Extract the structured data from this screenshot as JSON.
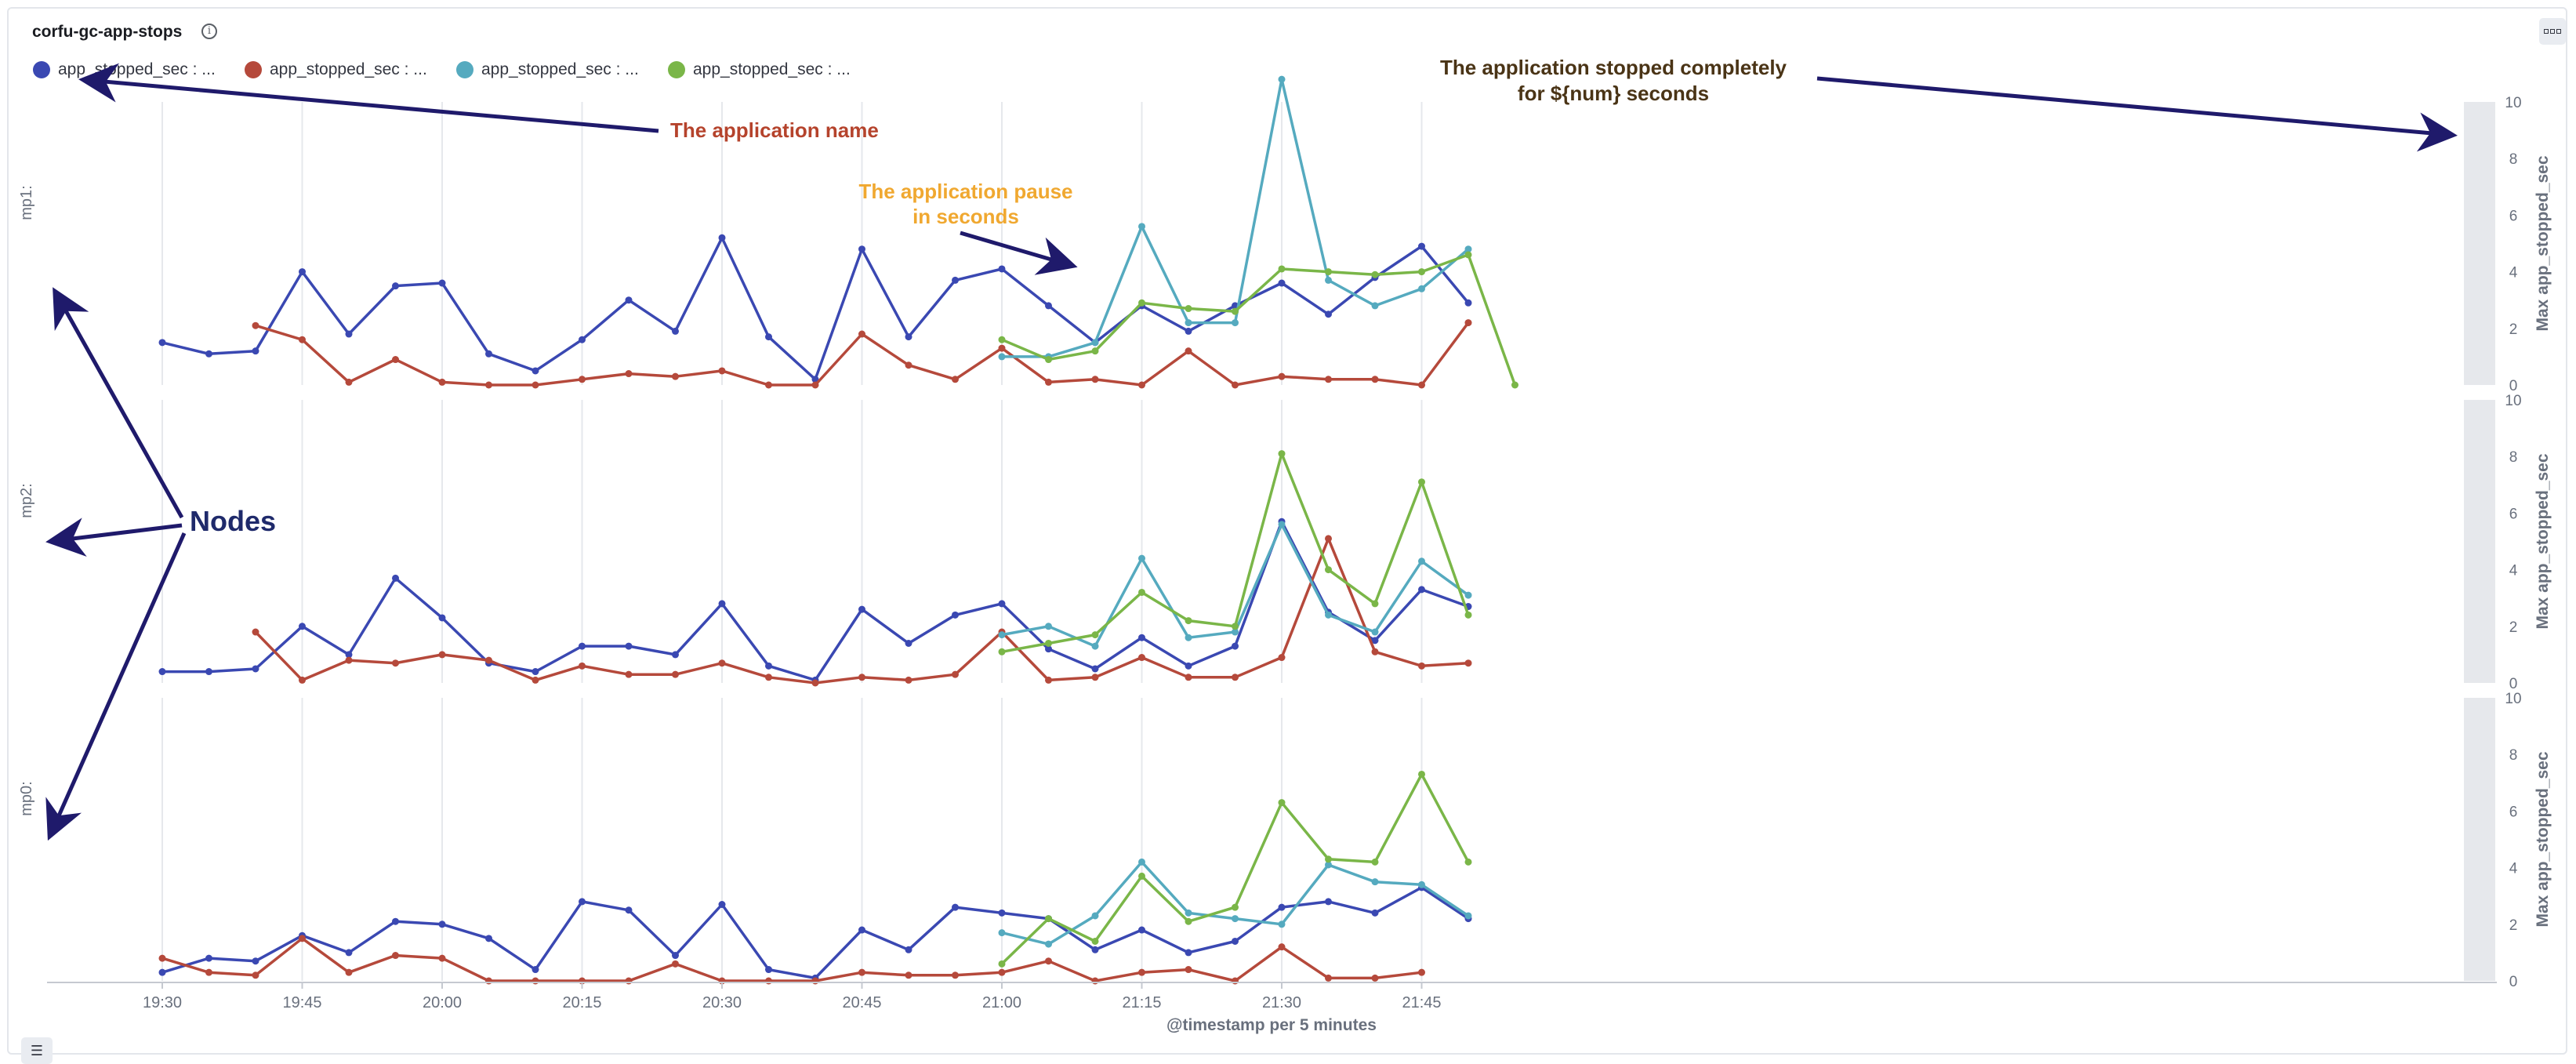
{
  "panel": {
    "title": "corfu-gc-app-stops",
    "info_icon": "info-icon",
    "menu_icon": "panel-options-icon",
    "list_icon": "legend-toggle-icon"
  },
  "legend": [
    {
      "label": "app_stopped_sec : ...",
      "color": "#3a48b2"
    },
    {
      "label": "app_stopped_sec : ...",
      "color": "#b5493b"
    },
    {
      "label": "app_stopped_sec : ...",
      "color": "#55aabf"
    },
    {
      "label": "app_stopped_sec : ...",
      "color": "#7ab648"
    }
  ],
  "annotations": {
    "app_name": "The application name",
    "pause_line1": "The application pause",
    "pause_line2": "in seconds",
    "stopped_line1": "The application stopped completely",
    "stopped_line2": "for ${num} seconds",
    "nodes": "Nodes"
  },
  "colors": {
    "app_name": "#b5432c",
    "pause": "#f0a830",
    "stopped": "#4a3416",
    "nodes": "#1f2a6b",
    "arrow": "#1f1a6b"
  },
  "chart_data": [
    {
      "type": "line",
      "panel": "mp1:",
      "x": [
        "19:30",
        "19:35",
        "19:40",
        "19:45",
        "19:50",
        "19:55",
        "20:00",
        "20:05",
        "20:10",
        "20:15",
        "20:20",
        "20:25",
        "20:30",
        "20:35",
        "20:40",
        "20:45",
        "20:50",
        "20:55",
        "21:00",
        "21:05",
        "21:10",
        "21:15",
        "21:20",
        "21:25",
        "21:30",
        "21:35",
        "21:40",
        "21:45",
        "21:50",
        "21:55"
      ],
      "xlabel": "@timestamp per 5 minutes",
      "ylabel": "Max app_stopped_sec",
      "ylim": [
        0,
        10
      ],
      "yticks": [
        0,
        2,
        4,
        6,
        8,
        10
      ],
      "series": [
        {
          "values": [
            1.5,
            1.1,
            1.2,
            4.0,
            1.8,
            3.5,
            3.6,
            1.1,
            0.5,
            1.6,
            3.0,
            1.9,
            5.2,
            1.7,
            0.2,
            4.8,
            1.7,
            3.7,
            4.1,
            2.8,
            1.5,
            2.8,
            1.9,
            2.8,
            3.6,
            2.5,
            3.8,
            4.9,
            2.9,
            null
          ]
        },
        {
          "values": [
            null,
            null,
            2.1,
            1.6,
            0.1,
            0.9,
            0.1,
            0.0,
            0.0,
            0.2,
            0.4,
            0.3,
            0.5,
            0.0,
            0.0,
            1.8,
            0.7,
            0.2,
            1.3,
            0.1,
            0.2,
            0.0,
            1.2,
            0.0,
            0.3,
            0.2,
            0.2,
            0.0,
            2.2,
            null
          ]
        },
        {
          "values": [
            null,
            null,
            null,
            null,
            null,
            null,
            null,
            null,
            null,
            null,
            null,
            null,
            null,
            null,
            null,
            null,
            null,
            null,
            1.0,
            1.0,
            1.5,
            5.6,
            2.2,
            2.2,
            10.8,
            3.7,
            2.8,
            3.4,
            4.8,
            null
          ]
        },
        {
          "values": [
            null,
            null,
            null,
            null,
            null,
            null,
            null,
            null,
            null,
            null,
            null,
            null,
            null,
            null,
            null,
            null,
            null,
            null,
            1.6,
            0.9,
            1.2,
            2.9,
            2.7,
            2.6,
            4.1,
            4.0,
            3.9,
            4.0,
            4.6,
            0.0
          ]
        }
      ]
    },
    {
      "type": "line",
      "panel": "mp2:",
      "x": [
        "19:30",
        "19:35",
        "19:40",
        "19:45",
        "19:50",
        "19:55",
        "20:00",
        "20:05",
        "20:10",
        "20:15",
        "20:20",
        "20:25",
        "20:30",
        "20:35",
        "20:40",
        "20:45",
        "20:50",
        "20:55",
        "21:00",
        "21:05",
        "21:10",
        "21:15",
        "21:20",
        "21:25",
        "21:30",
        "21:35",
        "21:40",
        "21:45",
        "21:50",
        "21:55"
      ],
      "xlabel": "@timestamp per 5 minutes",
      "ylabel": "Max app_stopped_sec",
      "ylim": [
        0,
        10
      ],
      "yticks": [
        0,
        2,
        4,
        6,
        8,
        10
      ],
      "series": [
        {
          "values": [
            0.4,
            0.4,
            0.5,
            2.0,
            1.0,
            3.7,
            2.3,
            0.7,
            0.4,
            1.3,
            1.3,
            1.0,
            2.8,
            0.6,
            0.1,
            2.6,
            1.4,
            2.4,
            2.8,
            1.2,
            0.5,
            1.6,
            0.6,
            1.3,
            5.7,
            2.5,
            1.5,
            3.3,
            2.7,
            null
          ]
        },
        {
          "values": [
            null,
            null,
            1.8,
            0.1,
            0.8,
            0.7,
            1.0,
            0.8,
            0.1,
            0.6,
            0.3,
            0.3,
            0.7,
            0.2,
            0.0,
            0.2,
            0.1,
            0.3,
            1.8,
            0.1,
            0.2,
            0.9,
            0.2,
            0.2,
            0.9,
            5.1,
            1.1,
            0.6,
            0.7,
            null
          ]
        },
        {
          "values": [
            null,
            null,
            null,
            null,
            null,
            null,
            null,
            null,
            null,
            null,
            null,
            null,
            null,
            null,
            null,
            null,
            null,
            null,
            1.7,
            2.0,
            1.3,
            4.4,
            1.6,
            1.8,
            5.6,
            2.4,
            1.8,
            4.3,
            3.1,
            null
          ]
        },
        {
          "values": [
            null,
            null,
            null,
            null,
            null,
            null,
            null,
            null,
            null,
            null,
            null,
            null,
            null,
            null,
            null,
            null,
            null,
            null,
            1.1,
            1.4,
            1.7,
            3.2,
            2.2,
            2.0,
            8.1,
            4.0,
            2.8,
            7.1,
            2.4,
            null
          ]
        }
      ]
    },
    {
      "type": "line",
      "panel": "mp0:",
      "x": [
        "19:30",
        "19:35",
        "19:40",
        "19:45",
        "19:50",
        "19:55",
        "20:00",
        "20:05",
        "20:10",
        "20:15",
        "20:20",
        "20:25",
        "20:30",
        "20:35",
        "20:40",
        "20:45",
        "20:50",
        "20:55",
        "21:00",
        "21:05",
        "21:10",
        "21:15",
        "21:20",
        "21:25",
        "21:30",
        "21:35",
        "21:40",
        "21:45",
        "21:50",
        "21:55"
      ],
      "xlabel": "@timestamp per 5 minutes",
      "ylabel": "Max app_stopped_sec",
      "ylim": [
        0,
        10
      ],
      "yticks": [
        0,
        2,
        4,
        6,
        8,
        10
      ],
      "series": [
        {
          "values": [
            0.3,
            0.8,
            0.7,
            1.6,
            1.0,
            2.1,
            2.0,
            1.5,
            0.4,
            2.8,
            2.5,
            0.9,
            2.7,
            0.4,
            0.1,
            1.8,
            1.1,
            2.6,
            2.4,
            2.2,
            1.1,
            1.8,
            1.0,
            1.4,
            2.6,
            2.8,
            2.4,
            3.3,
            2.2,
            null
          ]
        },
        {
          "values": [
            0.8,
            0.3,
            0.2,
            1.5,
            0.3,
            0.9,
            0.8,
            0.0,
            0.0,
            0.0,
            0.0,
            0.6,
            0.0,
            0.0,
            0.0,
            0.3,
            0.2,
            0.2,
            0.3,
            0.7,
            0.0,
            0.3,
            0.4,
            0.0,
            1.2,
            0.1,
            0.1,
            0.3,
            null,
            null
          ]
        },
        {
          "values": [
            null,
            null,
            null,
            null,
            null,
            null,
            null,
            null,
            null,
            null,
            null,
            null,
            null,
            null,
            null,
            null,
            null,
            null,
            1.7,
            1.3,
            2.3,
            4.2,
            2.4,
            2.2,
            2.0,
            4.1,
            3.5,
            3.4,
            2.3,
            null
          ]
        },
        {
          "values": [
            null,
            null,
            null,
            null,
            null,
            null,
            null,
            null,
            null,
            null,
            null,
            null,
            null,
            null,
            null,
            null,
            null,
            null,
            0.6,
            2.2,
            1.4,
            3.7,
            2.1,
            2.6,
            6.3,
            4.3,
            4.2,
            7.3,
            4.2,
            null
          ]
        }
      ]
    }
  ]
}
